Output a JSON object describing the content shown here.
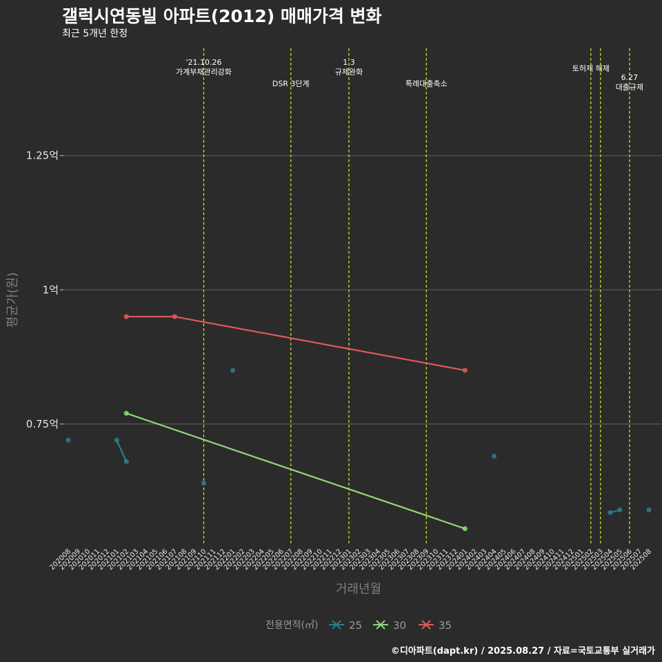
{
  "chart_data": {
    "type": "line",
    "title": "갤럭시연동빌 아파트(2012) 매매가격 변화",
    "subtitle": "최근 5개년 한정",
    "xlabel": "거래년월",
    "ylabel": "평균가(원)",
    "caption": "©디아파트(dapt.kr) / 2025.08.27 / 자료=국토교통부 실거래가",
    "y_ticks": [
      {
        "value": 0.75,
        "label": "0.75억"
      },
      {
        "value": 1.0,
        "label": "1억"
      },
      {
        "value": 1.25,
        "label": "1.25억"
      }
    ],
    "ylim": [
      0.525,
      1.45
    ],
    "x_categories": [
      "202008",
      "202009",
      "202010",
      "202011",
      "202012",
      "202101",
      "202102",
      "202103",
      "202104",
      "202105",
      "202106",
      "202107",
      "202108",
      "202109",
      "202110",
      "202111",
      "202112",
      "202201",
      "202202",
      "202203",
      "202204",
      "202205",
      "202206",
      "202207",
      "202208",
      "202209",
      "202210",
      "202211",
      "202212",
      "202301",
      "202302",
      "202303",
      "202304",
      "202305",
      "202306",
      "202307",
      "202308",
      "202309",
      "202310",
      "202311",
      "202312",
      "202401",
      "202402",
      "202403",
      "202404",
      "202405",
      "202406",
      "202407",
      "202408",
      "202409",
      "202410",
      "202411",
      "202412",
      "202501",
      "202502",
      "202503",
      "202504",
      "202505",
      "202506",
      "202507",
      "202508"
    ],
    "legend": {
      "title": "전용면적(㎡)",
      "position": "bottom"
    },
    "series": [
      {
        "name": "25",
        "color": "#2a7f89",
        "points": [
          {
            "x": "202008",
            "y": 0.72
          },
          {
            "x": "202101",
            "y": 0.72
          },
          {
            "x": "202102",
            "y": 0.68
          },
          {
            "x": "202110",
            "y": 0.64
          },
          {
            "x": "202201",
            "y": 0.85
          },
          {
            "x": "202404",
            "y": 0.69
          },
          {
            "x": "202504",
            "y": 0.585
          },
          {
            "x": "202505",
            "y": 0.59
          },
          {
            "x": "202508",
            "y": 0.59
          }
        ],
        "segments": [
          [
            "202101",
            "202102"
          ],
          [
            "202504",
            "202505"
          ]
        ]
      },
      {
        "name": "30",
        "color": "#8ed97a",
        "points": [
          {
            "x": "202102",
            "y": 0.77
          },
          {
            "x": "202401",
            "y": 0.555
          }
        ],
        "segments": [
          [
            "202102",
            "202401"
          ]
        ]
      },
      {
        "name": "35",
        "color": "#e05a5a",
        "points": [
          {
            "x": "202102",
            "y": 0.95
          },
          {
            "x": "202107",
            "y": 0.95
          },
          {
            "x": "202401",
            "y": 0.85
          }
        ],
        "segments": [
          [
            "202102",
            "202107"
          ],
          [
            "202107",
            "202401"
          ]
        ]
      }
    ],
    "events": [
      {
        "x": "202110",
        "lines": [
          "'21.10.26",
          "가계부채관리강화"
        ],
        "row": 0
      },
      {
        "x": "202207",
        "lines": [
          "DSR 3단계"
        ],
        "row": 2
      },
      {
        "x": "202301",
        "lines": [
          "1.3",
          "규제완화"
        ],
        "row": 0
      },
      {
        "x": "202309",
        "lines": [
          "특례대출축소"
        ],
        "row": 2
      },
      {
        "x": "202502",
        "lines": [
          "토허제 해제"
        ],
        "row": 1
      },
      {
        "x": "202503",
        "lines": [],
        "row": 1
      },
      {
        "x": "202506",
        "lines": [
          "6.27",
          "대출규제"
        ],
        "row": 1.5
      }
    ]
  }
}
